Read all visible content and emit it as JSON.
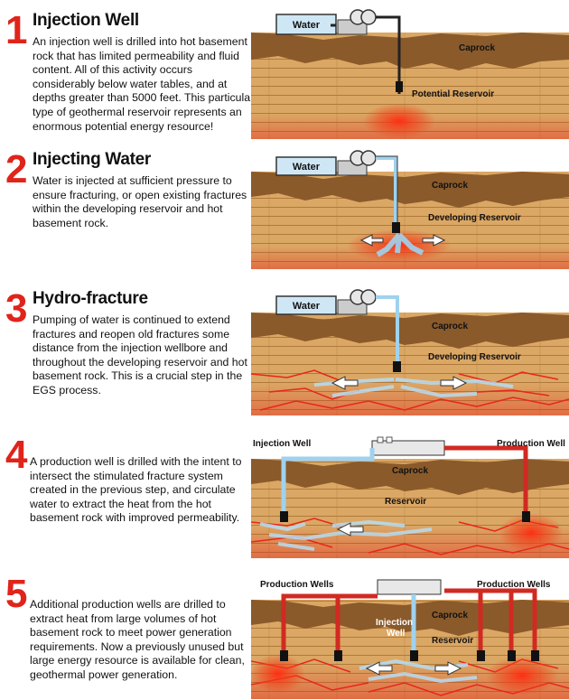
{
  "steps": [
    {
      "number": "1",
      "title": "Injection Well",
      "description": "An injection well is drilled into hot basement rock that has limited permeability and fluid content. All of this activity occurs considerably below water tables, and at depths greater than 5000 feet. This particular type of geothermal reservoir represents an enormous potential energy resource!",
      "labels": {
        "water": "Water",
        "caprock": "Caprock",
        "reservoir": "Potential Reservoir"
      }
    },
    {
      "number": "2",
      "title": "Injecting Water",
      "description": "Water is injected at sufficient pressure to ensure fracturing, or open existing fractures within the developing reservoir and hot basement rock.",
      "labels": {
        "water": "Water",
        "caprock": "Caprock",
        "reservoir": "Developing Reservoir"
      }
    },
    {
      "number": "3",
      "title": "Hydro-fracture",
      "description": "Pumping of water is continued to extend fractures and reopen old fractures some distance from the injection wellbore and throughout the developing reservoir and hot basement rock.  This is a crucial step in the EGS process.",
      "labels": {
        "water": "Water",
        "caprock": "Caprock",
        "reservoir": "Developing Reservoir"
      }
    },
    {
      "number": "4",
      "title": "",
      "description": "A production well is drilled with the intent to intersect the stimulated fracture system created in the previous step, and circulate water to extract the heat from the hot basement rock with improved permeability.",
      "labels": {
        "injection": "Injection Well",
        "production": "Production Well",
        "caprock": "Caprock",
        "reservoir": "Reservoir"
      }
    },
    {
      "number": "5",
      "title": "",
      "description": "Additional production wells are drilled to extract heat from large volumes of hot basement rock to meet power generation requirements.  Now a previously unused but large energy resource is available for clean, geothermal power generation.",
      "labels": {
        "production_left": "Production Wells",
        "production_right": "Production Wells",
        "injection_line1": "Injection",
        "injection_line2": "Well",
        "caprock": "Caprock",
        "reservoir": "Reservoir"
      }
    }
  ],
  "colors": {
    "number_red": "#e0241b",
    "caprock_brown": "#8a5a2b",
    "rock_tan": "#d9a35f",
    "water_blue": "#9fd2ee",
    "hot_red": "#e8261c",
    "pipe_red": "#d02a22"
  }
}
